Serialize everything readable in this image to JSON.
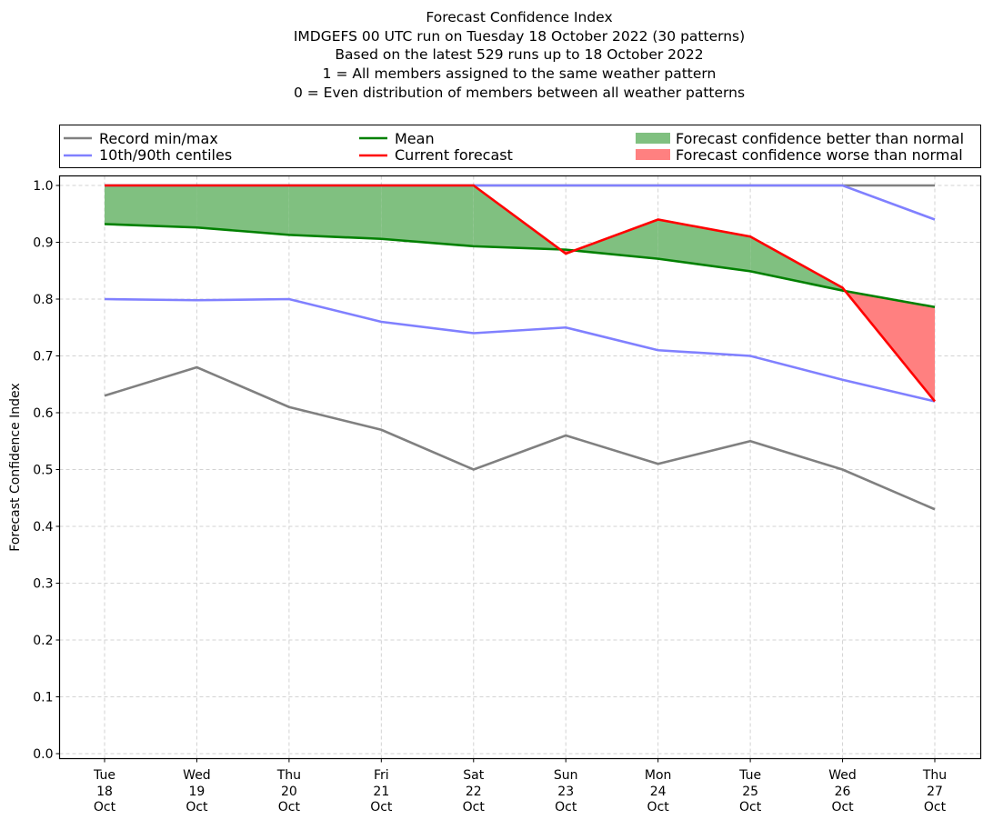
{
  "chart_data": {
    "type": "line",
    "title_lines": [
      "Forecast Confidence Index",
      "IMDGEFS 00 UTC run on Tuesday 18 October 2022 (30 patterns)",
      "Based on the latest 529 runs up to 18 October 2022",
      "1 = All members assigned to the same weather pattern",
      "0 = Even distribution of members between all weather patterns"
    ],
    "ylabel": "Forecast Confidence Index",
    "xlabel": "",
    "ylim": [
      0.0,
      1.0
    ],
    "yticks": [
      "0.0",
      "0.1",
      "0.2",
      "0.3",
      "0.4",
      "0.5",
      "0.6",
      "0.7",
      "0.8",
      "0.9",
      "1.0"
    ],
    "ytick_values": [
      0.0,
      0.1,
      0.2,
      0.3,
      0.4,
      0.5,
      0.6,
      0.7,
      0.8,
      0.9,
      1.0
    ],
    "grid": true,
    "categories": [
      {
        "day": "Tue",
        "date": "18",
        "month": "Oct"
      },
      {
        "day": "Wed",
        "date": "19",
        "month": "Oct"
      },
      {
        "day": "Thu",
        "date": "20",
        "month": "Oct"
      },
      {
        "day": "Fri",
        "date": "21",
        "month": "Oct"
      },
      {
        "day": "Sat",
        "date": "22",
        "month": "Oct"
      },
      {
        "day": "Sun",
        "date": "23",
        "month": "Oct"
      },
      {
        "day": "Mon",
        "date": "24",
        "month": "Oct"
      },
      {
        "day": "Tue",
        "date": "25",
        "month": "Oct"
      },
      {
        "day": "Wed",
        "date": "26",
        "month": "Oct"
      },
      {
        "day": "Thu",
        "date": "27",
        "month": "Oct"
      }
    ],
    "series": [
      {
        "name": "Record max",
        "legend_group": "Record min/max",
        "color": "#808080",
        "values": [
          1.0,
          1.0,
          1.0,
          1.0,
          1.0,
          1.0,
          1.0,
          1.0,
          1.0,
          1.0
        ]
      },
      {
        "name": "Record min",
        "legend_group": "Record min/max",
        "color": "#808080",
        "values": [
          0.63,
          0.68,
          0.61,
          0.57,
          0.5,
          0.56,
          0.51,
          0.55,
          0.5,
          0.43
        ]
      },
      {
        "name": "90th centile",
        "legend_group": "10th/90th centiles",
        "color": "#8080ff",
        "values": [
          1.0,
          1.0,
          1.0,
          1.0,
          1.0,
          1.0,
          1.0,
          1.0,
          1.0,
          0.94
        ]
      },
      {
        "name": "10th centile",
        "legend_group": "10th/90th centiles",
        "color": "#8080ff",
        "values": [
          0.8,
          0.798,
          0.8,
          0.76,
          0.74,
          0.75,
          0.71,
          0.7,
          0.658,
          0.62
        ]
      },
      {
        "name": "Mean",
        "legend_group": "Mean",
        "color": "#008000",
        "values": [
          0.932,
          0.926,
          0.913,
          0.906,
          0.893,
          0.887,
          0.871,
          0.849,
          0.815,
          0.786
        ]
      },
      {
        "name": "Current forecast",
        "legend_group": "Current forecast",
        "color": "#ff0000",
        "values": [
          1.0,
          1.0,
          1.0,
          1.0,
          1.0,
          0.88,
          0.94,
          0.91,
          0.82,
          0.62
        ]
      }
    ],
    "fills": [
      {
        "name": "Forecast confidence better than normal",
        "color": "#80c080",
        "condition": "current > mean"
      },
      {
        "name": "Forecast confidence worse than normal",
        "color": "#ff8080",
        "condition": "current < mean"
      }
    ],
    "legend": {
      "placement": "top",
      "entries": [
        {
          "label": "Record min/max",
          "kind": "line",
          "color": "#808080"
        },
        {
          "label": "10th/90th centiles",
          "kind": "line",
          "color": "#8080ff"
        },
        {
          "label": "Mean",
          "kind": "line",
          "color": "#008000"
        },
        {
          "label": "Current forecast",
          "kind": "line",
          "color": "#ff0000"
        },
        {
          "label": "Forecast confidence better than normal",
          "kind": "patch",
          "color": "#80c080"
        },
        {
          "label": "Forecast confidence worse than normal",
          "kind": "patch",
          "color": "#ff8080"
        }
      ]
    }
  }
}
